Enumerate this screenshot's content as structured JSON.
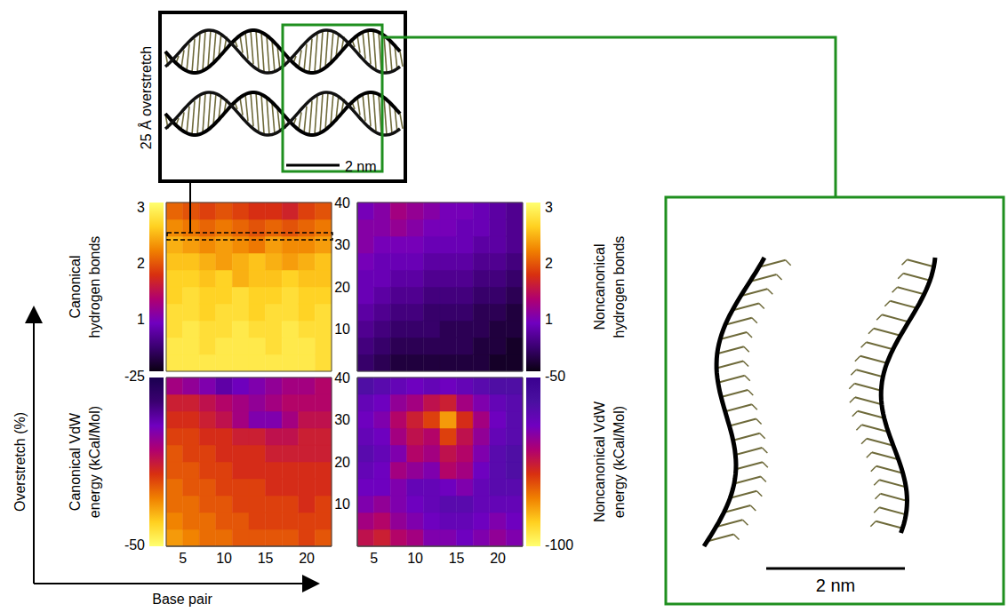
{
  "figure": {
    "x_label": "Base pair",
    "y_label": "Overstretch (%)",
    "render_label": "25 Å overstretch",
    "scale_bar": "2 nm",
    "zoom_scale_bar": "2 nm"
  },
  "chart_data": [
    {
      "type": "heatmap",
      "tick_labels": false,
      "xlim": [
        3,
        23
      ],
      "ylim": [
        0,
        40
      ],
      "x_bins": [
        3,
        5,
        7,
        9,
        11,
        13,
        15,
        17,
        19,
        21,
        23
      ],
      "y_bins": [
        0,
        4,
        8,
        12,
        16,
        20,
        24,
        28,
        32,
        36,
        40
      ],
      "colorbar": {
        "label": "Canonical hydrogen bonds",
        "range": [
          0.1,
          3.1
        ],
        "ticks": [
          1,
          2,
          3
        ],
        "colors": [
          "#0a0012",
          "#3a0070",
          "#7000c0",
          "#b00070",
          "#d83010",
          "#f08000",
          "#ffd020",
          "#ffff70"
        ]
      },
      "cells": [
        [
          2.9,
          2.9,
          2.9,
          2.9,
          2.9,
          2.9,
          2.9,
          2.9,
          2.9,
          2.8
        ],
        [
          2.9,
          2.9,
          2.8,
          2.9,
          2.9,
          2.9,
          2.8,
          2.9,
          2.9,
          2.8
        ],
        [
          2.8,
          2.9,
          2.8,
          2.8,
          2.9,
          2.8,
          2.8,
          2.9,
          2.8,
          2.8
        ],
        [
          2.8,
          2.8,
          2.7,
          2.8,
          2.8,
          2.7,
          2.8,
          2.8,
          2.7,
          2.8
        ],
        [
          2.7,
          2.8,
          2.7,
          2.7,
          2.8,
          2.7,
          2.7,
          2.8,
          2.7,
          2.7
        ],
        [
          2.7,
          2.7,
          2.6,
          2.7,
          2.5,
          2.6,
          2.6,
          2.7,
          2.6,
          2.6
        ],
        [
          2.6,
          2.6,
          2.5,
          2.4,
          2.5,
          2.6,
          2.5,
          2.4,
          2.5,
          2.6
        ],
        [
          2.5,
          2.4,
          2.3,
          2.4,
          2.3,
          2.2,
          2.4,
          2.3,
          2.3,
          2.4
        ],
        [
          2.3,
          2.2,
          2.1,
          2.2,
          2.1,
          2.0,
          2.1,
          2.0,
          2.1,
          2.2
        ],
        [
          2.1,
          2.0,
          1.9,
          2.0,
          1.9,
          1.8,
          1.8,
          1.7,
          1.9,
          2.0
        ]
      ]
    },
    {
      "type": "heatmap",
      "tick_labels": "y",
      "xlim": [
        3,
        23
      ],
      "ylim": [
        0,
        40
      ],
      "yticks": [
        10,
        20,
        30,
        40
      ],
      "x_bins": [
        3,
        5,
        7,
        9,
        11,
        13,
        15,
        17,
        19,
        21,
        23
      ],
      "y_bins": [
        0,
        4,
        8,
        12,
        16,
        20,
        24,
        28,
        32,
        36,
        40
      ],
      "colorbar": {
        "label": "Noncanonical hydrogen bonds",
        "range": [
          0.1,
          3.1
        ],
        "ticks": [
          1,
          2,
          3
        ],
        "colors": [
          "#0a0012",
          "#3a0070",
          "#7000c0",
          "#b00070",
          "#d83010",
          "#f08000",
          "#ffd020",
          "#ffff70"
        ]
      },
      "cells": [
        [
          0.5,
          0.4,
          0.3,
          0.3,
          0.3,
          0.3,
          0.3,
          0.3,
          0.2,
          0.2
        ],
        [
          0.6,
          0.5,
          0.4,
          0.4,
          0.4,
          0.4,
          0.4,
          0.3,
          0.3,
          0.2
        ],
        [
          0.7,
          0.6,
          0.5,
          0.5,
          0.5,
          0.4,
          0.4,
          0.4,
          0.3,
          0.3
        ],
        [
          0.8,
          0.7,
          0.6,
          0.6,
          0.5,
          0.5,
          0.5,
          0.4,
          0.4,
          0.3
        ],
        [
          0.9,
          0.8,
          0.7,
          0.7,
          0.6,
          0.6,
          0.6,
          0.5,
          0.5,
          0.4
        ],
        [
          0.9,
          0.9,
          0.8,
          0.8,
          0.7,
          0.7,
          0.7,
          0.6,
          0.6,
          0.5
        ],
        [
          1.0,
          0.9,
          0.9,
          0.9,
          0.8,
          0.8,
          0.8,
          0.7,
          0.7,
          0.6
        ],
        [
          1.1,
          1.0,
          1.0,
          1.0,
          0.9,
          0.9,
          0.9,
          0.8,
          0.8,
          0.7
        ],
        [
          1.1,
          1.1,
          1.2,
          1.1,
          1.0,
          1.0,
          0.9,
          0.9,
          0.8,
          0.7
        ],
        [
          1.0,
          1.1,
          1.3,
          1.2,
          1.1,
          1.0,
          1.0,
          0.9,
          0.8,
          0.7
        ]
      ]
    },
    {
      "type": "heatmap",
      "tick_labels": "x",
      "xlim": [
        3,
        23
      ],
      "ylim": [
        0,
        40
      ],
      "xticks": [
        5,
        10,
        15,
        20
      ],
      "x_bins": [
        3,
        5,
        7,
        9,
        11,
        13,
        15,
        17,
        19,
        21,
        23
      ],
      "y_bins": [
        0,
        4,
        8,
        12,
        16,
        20,
        24,
        28,
        32,
        36,
        40
      ],
      "colorbar": {
        "label": "Canonical VdW energy (kCal/Mol)",
        "range": [
          -50,
          -25
        ],
        "ticks": [
          -50,
          -25
        ],
        "colors": [
          "#ffff70",
          "#ffd020",
          "#f08000",
          "#d83010",
          "#b00070",
          "#7000c0",
          "#3a0070",
          "#1a0050"
        ]
      },
      "cells": [
        [
          -44,
          -43,
          -42,
          -42,
          -41,
          -41,
          -41,
          -41,
          -40,
          -41
        ],
        [
          -43,
          -42,
          -42,
          -41,
          -41,
          -40,
          -40,
          -40,
          -40,
          -40
        ],
        [
          -42,
          -42,
          -41,
          -41,
          -40,
          -40,
          -40,
          -40,
          -39,
          -40
        ],
        [
          -42,
          -41,
          -41,
          -40,
          -40,
          -40,
          -39,
          -39,
          -39,
          -39
        ],
        [
          -41,
          -41,
          -40,
          -40,
          -39,
          -39,
          -39,
          -39,
          -39,
          -39
        ],
        [
          -41,
          -40,
          -40,
          -39,
          -39,
          -39,
          -38,
          -38,
          -38,
          -38
        ],
        [
          -40,
          -40,
          -39,
          -39,
          -38,
          -38,
          -37,
          -37,
          -38,
          -38
        ],
        [
          -39,
          -39,
          -38,
          -37,
          -35,
          -33,
          -33,
          -35,
          -37,
          -37
        ],
        [
          -38,
          -38,
          -37,
          -36,
          -35,
          -34,
          -35,
          -36,
          -36,
          -36
        ],
        [
          -35,
          -34,
          -33,
          -31,
          -32,
          -33,
          -34,
          -35,
          -35,
          -36
        ]
      ]
    },
    {
      "type": "heatmap",
      "tick_labels": true,
      "xlim": [
        3,
        23
      ],
      "ylim": [
        0,
        40
      ],
      "xticks": [
        5,
        10,
        15,
        20
      ],
      "yticks": [
        10,
        20,
        30,
        40
      ],
      "x_bins": [
        3,
        5,
        7,
        9,
        11,
        13,
        15,
        17,
        19,
        21,
        23
      ],
      "y_bins": [
        0,
        4,
        8,
        12,
        16,
        20,
        24,
        28,
        32,
        36,
        40
      ],
      "colorbar": {
        "label": "Noncanonical VdW energy (kCal/Mol)",
        "range": [
          -100,
          -50
        ],
        "ticks": [
          -100,
          -50
        ],
        "colors": [
          "#ffff70",
          "#ffd020",
          "#f08000",
          "#d83010",
          "#b00070",
          "#7000c0",
          "#4a10a0",
          "#3a0090"
        ]
      },
      "cells": [
        [
          -74,
          -76,
          -72,
          -70,
          -66,
          -66,
          -64,
          -66,
          -68,
          -66
        ],
        [
          -70,
          -72,
          -68,
          -66,
          -64,
          -62,
          -62,
          -64,
          -66,
          -64
        ],
        [
          -66,
          -68,
          -66,
          -64,
          -62,
          -60,
          -60,
          -62,
          -62,
          -62
        ],
        [
          -64,
          -64,
          -66,
          -62,
          -62,
          -64,
          -66,
          -62,
          -60,
          -60
        ],
        [
          -62,
          -64,
          -70,
          -68,
          -66,
          -72,
          -70,
          -64,
          -60,
          -58
        ],
        [
          -60,
          -62,
          -66,
          -72,
          -70,
          -74,
          -72,
          -66,
          -60,
          -58
        ],
        [
          -62,
          -64,
          -70,
          -74,
          -72,
          -80,
          -74,
          -68,
          -62,
          -60
        ],
        [
          -64,
          -66,
          -72,
          -76,
          -80,
          -88,
          -78,
          -70,
          -64,
          -60
        ],
        [
          -62,
          -64,
          -68,
          -70,
          -74,
          -76,
          -70,
          -66,
          -62,
          -60
        ],
        [
          -58,
          -60,
          -62,
          -64,
          -62,
          -64,
          -62,
          -60,
          -58,
          -58
        ]
      ]
    }
  ]
}
